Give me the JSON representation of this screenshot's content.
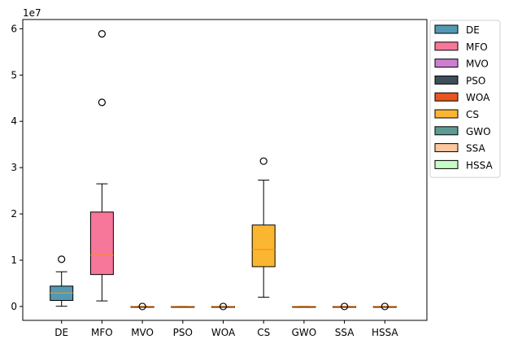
{
  "chart_data": {
    "type": "box",
    "y_multiplier": "1e7",
    "ylim": [
      -0.3,
      6.2
    ],
    "y_ticks": [
      0,
      1,
      2,
      3,
      4,
      5,
      6
    ],
    "legend_position": "outside-upper-right",
    "grid": false,
    "series": [
      {
        "name": "DE",
        "color": "#5499B3",
        "min": 0.05,
        "q1": 1.3,
        "median": 2.9,
        "q3": 4.4,
        "max": 7.5,
        "outliers": [
          10.2
        ]
      },
      {
        "name": "MFO",
        "color": "#F7779A",
        "min": 1.2,
        "q1": 6.9,
        "median": 11.1,
        "q3": 20.4,
        "max": 26.5,
        "outliers": [
          44.1,
          58.9
        ]
      },
      {
        "name": "MVO",
        "color": "#CC7FD1",
        "min": 0.0,
        "q1": 0.0,
        "median": 0.0,
        "q3": 0.0,
        "max": 0.0,
        "outliers": [
          0.0
        ]
      },
      {
        "name": "PSO",
        "color": "#3E4E5B",
        "min": 0.0,
        "q1": 0.0,
        "median": 0.0,
        "q3": 0.0,
        "max": 0.0,
        "outliers": []
      },
      {
        "name": "WOA",
        "color": "#E8551E",
        "min": 0.0,
        "q1": 0.0,
        "median": 0.0,
        "q3": 0.0,
        "max": 0.0,
        "outliers": [
          0.0
        ]
      },
      {
        "name": "CS",
        "color": "#FBB631",
        "min": 2.0,
        "q1": 8.6,
        "median": 12.3,
        "q3": 17.6,
        "max": 27.3,
        "outliers": [
          31.4
        ]
      },
      {
        "name": "GWO",
        "color": "#5E9B93",
        "min": 0.0,
        "q1": 0.0,
        "median": 0.0,
        "q3": 0.0,
        "max": 0.0,
        "outliers": []
      },
      {
        "name": "SSA",
        "color": "#FBC79E",
        "min": 0.0,
        "q1": 0.0,
        "median": 0.0,
        "q3": 0.0,
        "max": 0.0,
        "outliers": [
          0.0
        ]
      },
      {
        "name": "HSSA",
        "color": "#C7FCC5",
        "min": 0.0,
        "q1": 0.0,
        "median": 0.0,
        "q3": 0.0,
        "max": 0.0,
        "outliers": [
          0.0
        ]
      }
    ],
    "median_color": "#FF8C1A",
    "value_scale_note": "values in units of 1e6 (axis shows ×1e7)"
  }
}
